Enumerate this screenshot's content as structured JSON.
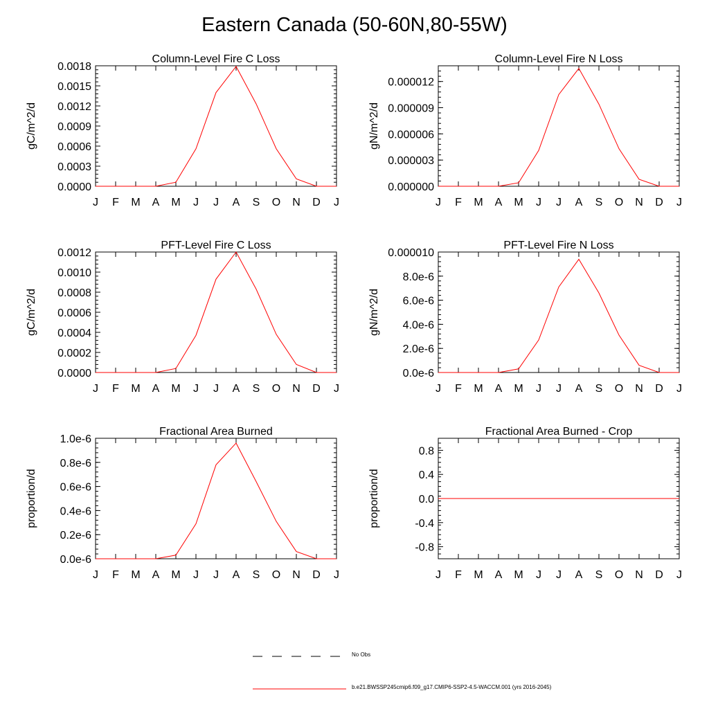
{
  "title": "Eastern Canada (50-60N,80-55W)",
  "months": [
    "J",
    "F",
    "M",
    "A",
    "M",
    "J",
    "J",
    "A",
    "S",
    "O",
    "N",
    "D",
    "J"
  ],
  "line_color": "#ff0000",
  "obs_line_color": "#000000",
  "legend": {
    "obs_label": "No Obs",
    "model_label": "b.e21.BWSSP245cmip6.f09_g17.CMIP6-SSP2-4.5-WACCM.001 (yrs 2016-2045)"
  },
  "chart_data": [
    {
      "type": "line",
      "title": "Column-Level Fire C Loss",
      "ylabel": "gC/m^2/d",
      "ylim": [
        0,
        0.0018
      ],
      "yticks": [
        0,
        0.0003,
        0.0006,
        0.0009,
        0.0012,
        0.0015,
        0.0018
      ],
      "ytick_labels": [
        "0.0000",
        "0.0003",
        "0.0006",
        "0.0009",
        "0.0012",
        "0.0015",
        "0.0018"
      ],
      "series": [
        {
          "name": "b.e21.BWSSP245cmip6.f09_g17.CMIP6-SSP2-4.5-WACCM.001 (yrs 2016-2045)",
          "values": [
            0,
            0,
            0,
            0,
            6e-05,
            0.00056,
            0.0014,
            0.00179,
            0.00123,
            0.00056,
            0.00011,
            0,
            0
          ]
        }
      ]
    },
    {
      "type": "line",
      "title": "Column-Level Fire N Loss",
      "ylabel": "gN/m^2/d",
      "ylim": [
        0,
        1.38e-05
      ],
      "yticks": [
        0,
        3e-06,
        6e-06,
        9e-06,
        1.2e-05
      ],
      "ytick_labels": [
        "0.000000",
        "0.000003",
        "0.000006",
        "0.000009",
        "0.000012"
      ],
      "series": [
        {
          "name": "b.e21.BWSSP245cmip6.f09_g17.CMIP6-SSP2-4.5-WACCM.001 (yrs 2016-2045)",
          "values": [
            0,
            0,
            0,
            0,
            4e-07,
            4.1e-06,
            1.05e-05,
            1.35e-05,
            9.4e-06,
            4.3e-06,
            8e-07,
            0,
            0
          ]
        }
      ]
    },
    {
      "type": "line",
      "title": "PFT-Level Fire C Loss",
      "ylabel": "gC/m^2/d",
      "ylim": [
        0,
        0.0012
      ],
      "yticks": [
        0,
        0.0002,
        0.0004,
        0.0006,
        0.0008,
        0.001,
        0.0012
      ],
      "ytick_labels": [
        "0.0000",
        "0.0002",
        "0.0004",
        "0.0006",
        "0.0008",
        "0.0010",
        "0.0012"
      ],
      "series": [
        {
          "name": "b.e21.BWSSP245cmip6.f09_g17.CMIP6-SSP2-4.5-WACCM.001 (yrs 2016-2045)",
          "values": [
            0,
            0,
            0,
            0,
            4e-05,
            0.00037,
            0.00093,
            0.0012,
            0.00083,
            0.00038,
            8e-05,
            0,
            0
          ]
        }
      ]
    },
    {
      "type": "line",
      "title": "PFT-Level Fire N Loss",
      "ylabel": "gN/m^2/d",
      "ylim": [
        0,
        1e-05
      ],
      "yticks": [
        0,
        2e-06,
        4e-06,
        6e-06,
        8e-06,
        1e-05
      ],
      "ytick_labels": [
        "0.0e-6",
        "2.0e-6",
        "4.0e-6",
        "6.0e-6",
        "8.0e-6",
        "0.000010"
      ],
      "series": [
        {
          "name": "b.e21.BWSSP245cmip6.f09_g17.CMIP6-SSP2-4.5-WACCM.001 (yrs 2016-2045)",
          "values": [
            0,
            0,
            0,
            0,
            3e-07,
            2.7e-06,
            7.1e-06,
            9.4e-06,
            6.6e-06,
            3.1e-06,
            6e-07,
            0,
            0
          ]
        }
      ]
    },
    {
      "type": "line",
      "title": "Fractional Area Burned",
      "ylabel": "proportion/d",
      "ylim": [
        0,
        1e-06
      ],
      "yticks": [
        0,
        2e-07,
        4e-07,
        6e-07,
        8e-07,
        1e-06
      ],
      "ytick_labels": [
        "0.0e-6",
        "0.2e-6",
        "0.4e-6",
        "0.6e-6",
        "0.8e-6",
        "1.0e-6"
      ],
      "series": [
        {
          "name": "b.e21.BWSSP245cmip6.f09_g17.CMIP6-SSP2-4.5-WACCM.001 (yrs 2016-2045)",
          "values": [
            0,
            0,
            0,
            0,
            3e-08,
            2.9e-07,
            7.8e-07,
            9.6e-07,
            6.4e-07,
            3.1e-07,
            6e-08,
            0,
            0
          ]
        }
      ]
    },
    {
      "type": "line",
      "title": "Fractional Area Burned - Crop",
      "ylabel": "proportion/d",
      "ylim": [
        -1,
        1
      ],
      "yticks": [
        -0.8,
        -0.4,
        0,
        0.4,
        0.8
      ],
      "ytick_labels": [
        "-0.8",
        "-0.4",
        "0.0",
        "0.4",
        "0.8"
      ],
      "series": [
        {
          "name": "b.e21.BWSSP245cmip6.f09_g17.CMIP6-SSP2-4.5-WACCM.001 (yrs 2016-2045)",
          "values": [
            0,
            0,
            0,
            0,
            0,
            0,
            0,
            0,
            0,
            0,
            0,
            0,
            0
          ]
        }
      ]
    }
  ]
}
